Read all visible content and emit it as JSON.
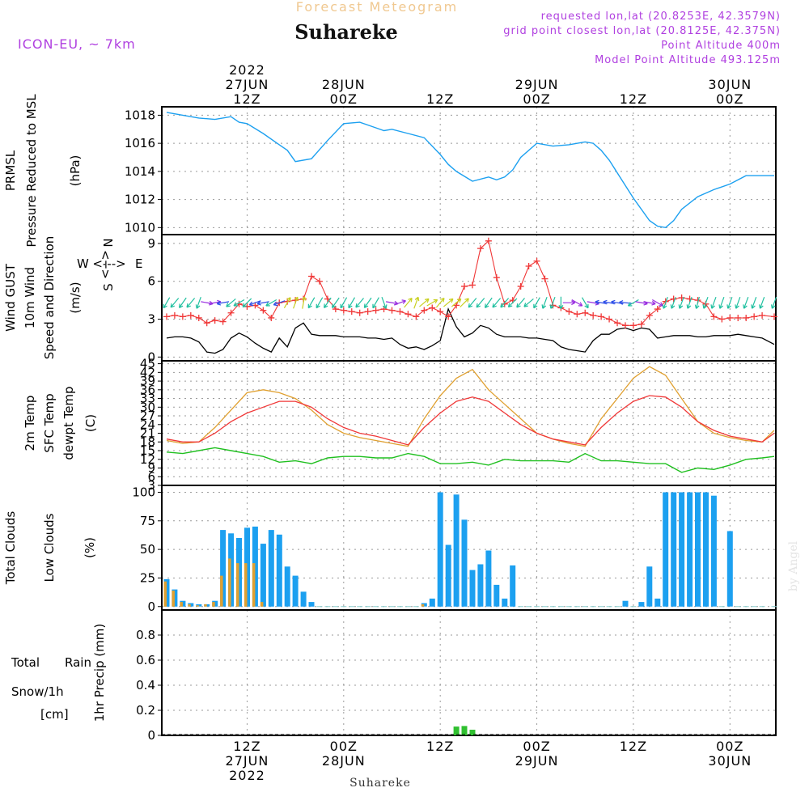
{
  "header": {
    "forecast_label": "Forecast Meteogram",
    "station": "Suhareke",
    "model": "ICON-EU, ~ 7km",
    "info": [
      "requested lon,lat (20.8253E, 42.3579N)",
      "grid point closest lon,lat (20.8125E, 42.375N)",
      "Point Altitude 400m",
      "Model Point Altitude 493.125m"
    ]
  },
  "time_axis": {
    "ticks": [
      {
        "hour": 12,
        "top": [
          "2022",
          "27JUN",
          "12Z"
        ],
        "bottom": [
          "12Z",
          "27JUN",
          "2022"
        ]
      },
      {
        "hour": 24,
        "top": [
          "28JUN",
          "00Z"
        ],
        "bottom": [
          "00Z",
          "28JUN"
        ]
      },
      {
        "hour": 36,
        "top": [
          "12Z"
        ],
        "bottom": [
          "12Z"
        ]
      },
      {
        "hour": 48,
        "top": [
          "29JUN",
          "00Z"
        ],
        "bottom": [
          "00Z",
          "29JUN"
        ]
      },
      {
        "hour": 60,
        "top": [
          "12Z"
        ],
        "bottom": [
          "12Z"
        ]
      },
      {
        "hour": 72,
        "top": [
          "30JUN",
          "00Z"
        ],
        "bottom": [
          "00Z",
          "30JUN"
        ]
      }
    ],
    "start_hour": 1.4,
    "end_hour": 77.7
  },
  "footer": {
    "station": "Suhareke",
    "credit": "by Angel"
  },
  "colors": {
    "pressure": "#1ca0f0",
    "gust": "#f03838",
    "wind": "#000000",
    "temp2m": "#f03838",
    "sfc": "#e0a030",
    "dewpt": "#20c020",
    "total_cloud": "#1ca0f0",
    "low_cloud": "#e0a030",
    "rain": "#30c030",
    "snow": "#4040f0",
    "direction": "#b040e0"
  },
  "chart_data": [
    {
      "id": "pressure",
      "type": "line",
      "labels": [
        "PRMSL",
        "Pressure Reduced to MSL"
      ],
      "unit": "(hPa)",
      "ylim": [
        1009.5,
        1018.6
      ],
      "yticks": [
        1010,
        1012,
        1014,
        1016,
        1018
      ],
      "x": [
        2,
        4,
        6,
        8,
        10,
        11,
        12,
        14,
        16,
        17,
        18,
        20,
        22,
        24,
        26,
        28,
        29,
        30,
        32,
        34,
        36,
        37,
        38,
        40,
        42,
        43,
        44,
        45,
        46,
        48,
        50,
        52,
        54,
        55,
        56,
        57,
        58,
        60,
        62,
        63,
        64,
        65,
        66,
        68,
        70,
        72,
        74,
        76,
        77.5
      ],
      "series": [
        {
          "name": "PRMSL",
          "values": [
            1018.2,
            1018.0,
            1017.8,
            1017.7,
            1017.9,
            1017.5,
            1017.4,
            1016.7,
            1015.9,
            1015.5,
            1014.7,
            1014.9,
            1016.2,
            1017.4,
            1017.5,
            1017.1,
            1016.9,
            1017.0,
            1016.7,
            1016.4,
            1015.2,
            1014.5,
            1014.0,
            1013.3,
            1013.6,
            1013.4,
            1013.6,
            1014.1,
            1015.0,
            1016.0,
            1015.8,
            1015.9,
            1016.1,
            1016.0,
            1015.5,
            1014.8,
            1013.9,
            1012.1,
            1010.5,
            1010.1,
            1010.0,
            1010.5,
            1011.3,
            1012.2,
            1012.7,
            1013.1,
            1013.7,
            1013.7,
            1013.7
          ]
        }
      ]
    },
    {
      "id": "wind",
      "type": "line",
      "labels": [
        "Wind GUST",
        "10m Wind",
        "Speed and Direction"
      ],
      "unit": "(m/s)",
      "compass": {
        "west": "W",
        "east": "E",
        "north": "N",
        "south": "S",
        "axis_h": "<--->",
        "axis_v": "<-->"
      },
      "ylim": [
        -0.3,
        9.7
      ],
      "yticks": [
        0,
        3,
        6,
        9
      ],
      "x": [
        2,
        3,
        4,
        5,
        6,
        7,
        8,
        9,
        10,
        11,
        12,
        13,
        14,
        15,
        16,
        17,
        18,
        19,
        20,
        21,
        22,
        23,
        24,
        25,
        26,
        27,
        28,
        29,
        30,
        31,
        32,
        33,
        34,
        35,
        36,
        37,
        38,
        39,
        40,
        41,
        42,
        43,
        44,
        45,
        46,
        47,
        48,
        49,
        50,
        51,
        52,
        53,
        54,
        55,
        56,
        57,
        58,
        59,
        60,
        61,
        62,
        63,
        64,
        65,
        66,
        67,
        68,
        69,
        70,
        71,
        72,
        73,
        74,
        75,
        76,
        77.5
      ],
      "series": [
        {
          "name": "Wind GUST",
          "markers": true,
          "values": [
            3.2,
            3.3,
            3.2,
            3.3,
            3.1,
            2.7,
            2.9,
            2.8,
            3.5,
            4.2,
            4.0,
            4.1,
            3.7,
            3.1,
            4.3,
            4.4,
            4.5,
            4.6,
            6.4,
            6.0,
            4.6,
            3.8,
            3.7,
            3.6,
            3.5,
            3.6,
            3.7,
            3.8,
            3.7,
            3.6,
            3.4,
            3.2,
            3.7,
            3.9,
            3.6,
            3.2,
            4.1,
            5.6,
            5.7,
            8.6,
            9.2,
            6.3,
            4.2,
            4.5,
            5.6,
            7.2,
            7.6,
            6.2,
            4.1,
            3.9,
            3.6,
            3.4,
            3.5,
            3.3,
            3.2,
            3.0,
            2.7,
            2.5,
            2.5,
            2.6,
            3.3,
            3.8,
            4.4,
            4.6,
            4.7,
            4.6,
            4.5,
            4.2,
            3.2,
            3.0,
            3.1,
            3.1,
            3.1,
            3.2,
            3.3,
            3.2
          ]
        },
        {
          "name": "10m Wind",
          "markers": false,
          "values": [
            1.5,
            1.6,
            1.6,
            1.5,
            1.2,
            0.4,
            0.3,
            0.6,
            1.5,
            1.9,
            1.6,
            1.1,
            0.7,
            0.4,
            1.5,
            0.8,
            2.3,
            2.7,
            1.8,
            1.7,
            1.7,
            1.7,
            1.6,
            1.6,
            1.6,
            1.5,
            1.5,
            1.4,
            1.5,
            1.0,
            0.7,
            0.8,
            0.6,
            0.9,
            1.3,
            3.8,
            2.4,
            1.6,
            1.9,
            2.5,
            2.3,
            1.8,
            1.6,
            1.6,
            1.6,
            1.5,
            1.5,
            1.4,
            1.3,
            0.8,
            0.6,
            0.5,
            0.4,
            1.3,
            1.8,
            1.8,
            2.2,
            2.3,
            2.1,
            2.3,
            2.2,
            1.5,
            1.6,
            1.7,
            1.7,
            1.7,
            1.6,
            1.6,
            1.7,
            1.7,
            1.7,
            1.8,
            1.7,
            1.6,
            1.5,
            1.0
          ]
        }
      ]
    },
    {
      "id": "temperature",
      "type": "line",
      "labels": [
        "2m Temp",
        "SFC Temp",
        "dewpt Temp"
      ],
      "unit": "(C)",
      "ylim": [
        3,
        46
      ],
      "yticks": [
        3,
        6,
        9,
        12,
        15,
        18,
        21,
        24,
        27,
        30,
        33,
        36,
        39,
        42,
        45
      ],
      "x": [
        2,
        4,
        6,
        8,
        10,
        12,
        14,
        16,
        18,
        20,
        22,
        24,
        26,
        28,
        30,
        32,
        34,
        36,
        38,
        40,
        42,
        44,
        46,
        48,
        50,
        52,
        54,
        56,
        58,
        60,
        62,
        64,
        66,
        68,
        70,
        72,
        74,
        76,
        77.5
      ],
      "series": [
        {
          "name": "2m Temp",
          "values": [
            19,
            18,
            18,
            21,
            25,
            28,
            30,
            32,
            32,
            30,
            26,
            23,
            21,
            20,
            18.5,
            17,
            23,
            28,
            32,
            33.5,
            32,
            28,
            24,
            21,
            19,
            18,
            17,
            23,
            28,
            32,
            34,
            33.5,
            30,
            25,
            22,
            20,
            19,
            18,
            21
          ]
        },
        {
          "name": "SFC Temp",
          "values": [
            18.5,
            17.5,
            18,
            23,
            29,
            35,
            36,
            35,
            33,
            29,
            24,
            21,
            19.5,
            18.5,
            17.5,
            16.5,
            26,
            34,
            40,
            43,
            36,
            31,
            26,
            21,
            19,
            17.5,
            16.5,
            26,
            33,
            40,
            44,
            41,
            33,
            25,
            21,
            19.5,
            18.5,
            18,
            22
          ]
        },
        {
          "name": "dewpt Temp",
          "values": [
            14.5,
            14,
            15,
            16,
            15,
            14,
            13,
            11,
            11.5,
            10.5,
            12.5,
            13,
            13,
            12.5,
            12.5,
            14,
            13,
            10.5,
            10.5,
            11,
            10,
            12,
            11.5,
            11.5,
            11.5,
            11,
            14,
            11.5,
            11.5,
            11,
            10.5,
            10.5,
            7.5,
            9,
            8.5,
            10,
            12,
            12.5,
            13
          ]
        }
      ]
    },
    {
      "id": "clouds",
      "type": "bar",
      "labels": [
        "Total Clouds",
        "Low Clouds"
      ],
      "unit": "(%)",
      "ylim": [
        -3,
        106
      ],
      "yticks": [
        0,
        25,
        50,
        75,
        100
      ],
      "x": [
        2,
        3,
        4,
        5,
        6,
        7,
        8,
        9,
        10,
        11,
        12,
        13,
        14,
        15,
        16,
        17,
        18,
        19,
        20,
        21,
        22,
        23,
        24,
        25,
        26,
        27,
        28,
        29,
        30,
        31,
        32,
        33,
        34,
        35,
        36,
        37,
        38,
        39,
        40,
        41,
        42,
        43,
        44,
        45,
        46,
        47,
        48,
        49,
        50,
        51,
        52,
        53,
        54,
        55,
        56,
        57,
        58,
        59,
        60,
        61,
        62,
        63,
        64,
        65,
        66,
        67,
        68,
        69,
        70,
        71,
        72,
        73,
        74,
        75,
        76,
        77.5
      ],
      "series": [
        {
          "name": "Total Clouds",
          "values": [
            24,
            15,
            5,
            3,
            2,
            2,
            5,
            67,
            64,
            60,
            69,
            70,
            55,
            67,
            63,
            35,
            27,
            13,
            4,
            0,
            0,
            0,
            0,
            0,
            0,
            0,
            0,
            0,
            0,
            0,
            0,
            0,
            3,
            7,
            100,
            54,
            98,
            76,
            32,
            37,
            49,
            19,
            7,
            36,
            0,
            0,
            0,
            0,
            0,
            0,
            0,
            0,
            0,
            0,
            0,
            0,
            0,
            5,
            0,
            4,
            35,
            7,
            100,
            100,
            100,
            100,
            100,
            100,
            97,
            0,
            66,
            0,
            0,
            0,
            0,
            0
          ]
        },
        {
          "name": "Low Clouds",
          "values": [
            22,
            14,
            4,
            2,
            1,
            2,
            4,
            27,
            42,
            38,
            38,
            38,
            4,
            0,
            0,
            0,
            0,
            0,
            0,
            0,
            0,
            0,
            0,
            0,
            0,
            0,
            0,
            0,
            0,
            0,
            0,
            0,
            2,
            0,
            0,
            0,
            0,
            0,
            0,
            0,
            0,
            0,
            0,
            0,
            0,
            0,
            0,
            0,
            0,
            0,
            0,
            0,
            0,
            0,
            0,
            0,
            0,
            0,
            0,
            0,
            0,
            0,
            0,
            0,
            0,
            0,
            0,
            0,
            0,
            0,
            0,
            0,
            0,
            0,
            0,
            0
          ]
        }
      ]
    },
    {
      "id": "precip",
      "type": "bar",
      "labels": [
        "Total",
        "Rain",
        "Snow/1h",
        "[cm]"
      ],
      "unit": "1hr Precip (mm)",
      "ylim": [
        0,
        1.0
      ],
      "yticks": [
        0,
        0.2,
        0.4,
        0.6,
        0.8
      ],
      "x": [
        38,
        39,
        40
      ],
      "series": [
        {
          "name": "Rain",
          "values": [
            0.07,
            0.075,
            0.045
          ]
        },
        {
          "name": "Snow/1h",
          "values": [
            0,
            0,
            0
          ]
        }
      ]
    }
  ],
  "wind_barbs": {
    "x": [
      2,
      3,
      4,
      5,
      6,
      7,
      8,
      9,
      10,
      11,
      12,
      13,
      14,
      15,
      16,
      17,
      18,
      19,
      20,
      21,
      22,
      23,
      24,
      25,
      26,
      27,
      28,
      29,
      30,
      31,
      32,
      33,
      34,
      35,
      36,
      37,
      38,
      39,
      40,
      41,
      42,
      43,
      44,
      45,
      46,
      47,
      48,
      49,
      50,
      51,
      52,
      53,
      54,
      55,
      56,
      57,
      58,
      59,
      60,
      61,
      62,
      63,
      64,
      65,
      66,
      67,
      68,
      69,
      70,
      71,
      72,
      73,
      74,
      75,
      76,
      77.5
    ],
    "direction_deg": [
      30,
      40,
      35,
      40,
      20,
      280,
      260,
      80,
      50,
      60,
      45,
      70,
      80,
      60,
      70,
      210,
      200,
      190,
      30,
      30,
      35,
      35,
      30,
      30,
      40,
      35,
      30,
      340,
      280,
      250,
      220,
      200,
      230,
      240,
      220,
      230,
      230,
      225,
      40,
      40,
      35,
      40,
      40,
      45,
      40,
      50,
      30,
      20,
      20,
      0,
      270,
      300,
      330,
      280,
      100,
      100,
      100,
      95,
      60,
      280,
      280,
      300,
      20,
      20,
      20,
      20,
      15,
      20,
      20,
      20,
      20,
      20,
      20,
      20,
      20,
      20
    ]
  }
}
